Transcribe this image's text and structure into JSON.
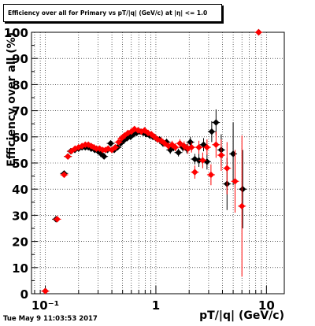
{
  "title": "Efficiency over all for Primary vs pT/|q| (GeV/c) at |η| <= 1.0",
  "timestamp": "Tue May  9 11:03:53 2017",
  "colors": {
    "black_series": "#000000",
    "red_series": "#ff0000"
  },
  "chart_data": {
    "type": "scatter",
    "xlabel": "pT/|q| (GeV/c)",
    "ylabel": "Efficiency over all (%)",
    "xscale": "log",
    "xlim": [
      0.075,
      14.5
    ],
    "ylim": [
      0,
      100
    ],
    "grid": true,
    "x_tick_labels": [
      "10⁻¹",
      "1",
      "10"
    ],
    "y_tick_labels": [
      "0",
      "10",
      "20",
      "30",
      "40",
      "50",
      "60",
      "70",
      "80",
      "90",
      "100"
    ],
    "series": [
      {
        "marker": "diamond",
        "color": "#000000",
        "points": [
          {
            "x": 0.1,
            "y": 1,
            "err": 0.5
          },
          {
            "x": 0.125,
            "y": 28.5,
            "err": 1
          },
          {
            "x": 0.148,
            "y": 46,
            "err": 1
          },
          {
            "x": 0.16,
            "y": 52.5,
            "err": 1
          },
          {
            "x": 0.17,
            "y": 54.5,
            "err": 1
          },
          {
            "x": 0.185,
            "y": 55,
            "err": 1
          },
          {
            "x": 0.2,
            "y": 55.5,
            "err": 1
          },
          {
            "x": 0.215,
            "y": 56,
            "err": 1
          },
          {
            "x": 0.23,
            "y": 56,
            "err": 1
          },
          {
            "x": 0.245,
            "y": 56,
            "err": 1
          },
          {
            "x": 0.26,
            "y": 55.5,
            "err": 1
          },
          {
            "x": 0.28,
            "y": 55,
            "err": 1
          },
          {
            "x": 0.3,
            "y": 54.5,
            "err": 1
          },
          {
            "x": 0.32,
            "y": 53.5,
            "err": 1
          },
          {
            "x": 0.34,
            "y": 52.5,
            "err": 1
          },
          {
            "x": 0.365,
            "y": 55,
            "err": 1
          },
          {
            "x": 0.39,
            "y": 57.5,
            "err": 1
          },
          {
            "x": 0.42,
            "y": 55,
            "err": 1
          },
          {
            "x": 0.45,
            "y": 56,
            "err": 1
          },
          {
            "x": 0.48,
            "y": 57.5,
            "err": 1
          },
          {
            "x": 0.51,
            "y": 58.5,
            "err": 1
          },
          {
            "x": 0.55,
            "y": 59.5,
            "err": 1
          },
          {
            "x": 0.59,
            "y": 60,
            "err": 1
          },
          {
            "x": 0.63,
            "y": 61,
            "err": 1
          },
          {
            "x": 0.67,
            "y": 61.5,
            "err": 1
          },
          {
            "x": 0.72,
            "y": 62,
            "err": 1
          },
          {
            "x": 0.77,
            "y": 61.5,
            "err": 1
          },
          {
            "x": 0.82,
            "y": 61,
            "err": 1
          },
          {
            "x": 0.88,
            "y": 60.5,
            "err": 1.2
          },
          {
            "x": 0.94,
            "y": 60,
            "err": 1.2
          },
          {
            "x": 1.0,
            "y": 59.5,
            "err": 1.2
          },
          {
            "x": 1.08,
            "y": 59,
            "err": 1.2
          },
          {
            "x": 1.16,
            "y": 57.5,
            "err": 1.3
          },
          {
            "x": 1.25,
            "y": 58,
            "err": 1.3
          },
          {
            "x": 1.35,
            "y": 55,
            "err": 1.5
          },
          {
            "x": 1.45,
            "y": 56,
            "err": 1.5
          },
          {
            "x": 1.6,
            "y": 54,
            "err": 1.5
          },
          {
            "x": 1.75,
            "y": 56,
            "err": 1.6
          },
          {
            "x": 1.9,
            "y": 55.5,
            "err": 1.8
          },
          {
            "x": 2.05,
            "y": 58,
            "err": 2
          },
          {
            "x": 2.25,
            "y": 51.5,
            "err": 2
          },
          {
            "x": 2.45,
            "y": 51,
            "err": 2.5
          },
          {
            "x": 2.7,
            "y": 57,
            "err": 2.5
          },
          {
            "x": 2.9,
            "y": 50.5,
            "err": 3
          },
          {
            "x": 3.2,
            "y": 62,
            "err": 4
          },
          {
            "x": 3.5,
            "y": 65.5,
            "err": 5
          },
          {
            "x": 3.9,
            "y": 55,
            "err": 6
          },
          {
            "x": 4.4,
            "y": 42,
            "err": 10
          },
          {
            "x": 5.0,
            "y": 53.5,
            "err": 12
          },
          {
            "x": 6.1,
            "y": 40,
            "err": 15
          },
          {
            "x": 8.5,
            "y": 100,
            "err": 0
          }
        ]
      },
      {
        "marker": "diamond",
        "color": "#ff0000",
        "points": [
          {
            "x": 0.1,
            "y": 1,
            "err": 0.5
          },
          {
            "x": 0.128,
            "y": 28.5,
            "err": 1
          },
          {
            "x": 0.148,
            "y": 45.5,
            "err": 1
          },
          {
            "x": 0.16,
            "y": 52.5,
            "err": 1
          },
          {
            "x": 0.172,
            "y": 54.5,
            "err": 1
          },
          {
            "x": 0.186,
            "y": 55.5,
            "err": 1
          },
          {
            "x": 0.2,
            "y": 56,
            "err": 1
          },
          {
            "x": 0.215,
            "y": 56.5,
            "err": 1
          },
          {
            "x": 0.23,
            "y": 57,
            "err": 1
          },
          {
            "x": 0.245,
            "y": 57,
            "err": 1
          },
          {
            "x": 0.26,
            "y": 56.5,
            "err": 1
          },
          {
            "x": 0.275,
            "y": 56,
            "err": 1
          },
          {
            "x": 0.29,
            "y": 55.5,
            "err": 1
          },
          {
            "x": 0.31,
            "y": 55.5,
            "err": 1
          },
          {
            "x": 0.33,
            "y": 55,
            "err": 1
          },
          {
            "x": 0.35,
            "y": 55,
            "err": 1
          },
          {
            "x": 0.37,
            "y": 55.5,
            "err": 1
          },
          {
            "x": 0.4,
            "y": 55,
            "err": 1
          },
          {
            "x": 0.43,
            "y": 56,
            "err": 1
          },
          {
            "x": 0.46,
            "y": 58,
            "err": 1
          },
          {
            "x": 0.49,
            "y": 59.5,
            "err": 1
          },
          {
            "x": 0.52,
            "y": 60.5,
            "err": 1
          },
          {
            "x": 0.56,
            "y": 61.5,
            "err": 1
          },
          {
            "x": 0.6,
            "y": 62,
            "err": 1
          },
          {
            "x": 0.64,
            "y": 63,
            "err": 1
          },
          {
            "x": 0.69,
            "y": 62.5,
            "err": 1
          },
          {
            "x": 0.74,
            "y": 62,
            "err": 1
          },
          {
            "x": 0.79,
            "y": 62.5,
            "err": 1
          },
          {
            "x": 0.85,
            "y": 61.5,
            "err": 1.2
          },
          {
            "x": 0.91,
            "y": 61,
            "err": 1.2
          },
          {
            "x": 0.97,
            "y": 60,
            "err": 1.2
          },
          {
            "x": 1.04,
            "y": 59,
            "err": 1.2
          },
          {
            "x": 1.12,
            "y": 58.5,
            "err": 1.3
          },
          {
            "x": 1.2,
            "y": 57.5,
            "err": 1.3
          },
          {
            "x": 1.3,
            "y": 56.5,
            "err": 1.4
          },
          {
            "x": 1.4,
            "y": 57,
            "err": 1.5
          },
          {
            "x": 1.5,
            "y": 56,
            "err": 1.5
          },
          {
            "x": 1.65,
            "y": 57.5,
            "err": 1.6
          },
          {
            "x": 1.8,
            "y": 56.5,
            "err": 1.8
          },
          {
            "x": 1.95,
            "y": 55.5,
            "err": 2
          },
          {
            "x": 2.1,
            "y": 56,
            "err": 2
          },
          {
            "x": 2.25,
            "y": 46.5,
            "err": 2.5
          },
          {
            "x": 2.45,
            "y": 56,
            "err": 2.5
          },
          {
            "x": 2.65,
            "y": 51,
            "err": 3
          },
          {
            "x": 2.9,
            "y": 56,
            "err": 3
          },
          {
            "x": 3.15,
            "y": 45.5,
            "err": 4
          },
          {
            "x": 3.5,
            "y": 57,
            "err": 5
          },
          {
            "x": 3.9,
            "y": 53,
            "err": 6
          },
          {
            "x": 4.4,
            "y": 48,
            "err": 10
          },
          {
            "x": 5.2,
            "y": 43,
            "err": 12
          },
          {
            "x": 6.0,
            "y": 33.5,
            "err": 27
          },
          {
            "x": 8.5,
            "y": 100,
            "err": 0
          }
        ]
      }
    ]
  }
}
